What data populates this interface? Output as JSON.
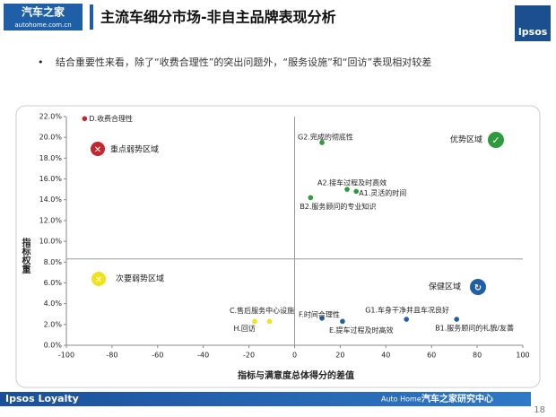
{
  "header": {
    "logo": "汽车之家",
    "logo_sub": "autohome.com.cn",
    "title": "主流车细分市场-非自主品牌表现分析",
    "brand": "Ipsos"
  },
  "bullet": "结合重要性来看，除了“收费合理性”的突出问题外，“服务设施”和“回访”表现相对较差",
  "chart_data": {
    "type": "scatter",
    "x_label": "指标与满意度总体得分的差值",
    "y_label": "指标权重",
    "xlim": [
      -100,
      100
    ],
    "xticks": [
      -100,
      -80,
      -60,
      -40,
      -20,
      0,
      20,
      40,
      60,
      80,
      100
    ],
    "ylim": [
      0,
      22
    ],
    "yticks": [
      {
        "value": 0,
        "label": "0.0%"
      },
      {
        "value": 2,
        "label": "2.0%"
      },
      {
        "value": 4,
        "label": "4.0%"
      },
      {
        "value": 6,
        "label": "6.0%"
      },
      {
        "value": 8,
        "label": "8.0%"
      },
      {
        "value": 10,
        "label": "10.0%"
      },
      {
        "value": 12,
        "label": "12.0%"
      },
      {
        "value": 14,
        "label": "14.0%"
      },
      {
        "value": 16,
        "label": "16.0%"
      },
      {
        "value": 18,
        "label": "18.0%"
      },
      {
        "value": 20,
        "label": "20.0%"
      },
      {
        "value": 22,
        "label": "22.0%"
      }
    ],
    "quadrant_lines": {
      "x": 0,
      "y": 8.3
    },
    "quadrants": [
      "重点弱势区域",
      "优势区域",
      "次要弱势区域",
      "保健区域"
    ],
    "points": [
      {
        "label": "D.收费合理性",
        "x": -92,
        "y": 21.8,
        "color": "#c0282d"
      },
      {
        "label": "G2.完成的彻底性",
        "x": 12,
        "y": 19.5,
        "color": "#2e9a3c"
      },
      {
        "label": "A2.接车过程及时高效",
        "x": 23,
        "y": 15.0,
        "color": "#2e9a3c"
      },
      {
        "label": "A1.灵活的时间",
        "x": 27,
        "y": 14.8,
        "color": "#2e9a3c"
      },
      {
        "label": "B2.服务顾问的专业知识",
        "x": 7,
        "y": 14.2,
        "color": "#2e9a3c"
      },
      {
        "label": "C.售后服务中心设施",
        "x": -17.5,
        "y": 2.3,
        "color": "#f2e21a"
      },
      {
        "label": "H.回访",
        "x": -11,
        "y": 2.3,
        "color": "#f2e21a"
      },
      {
        "label": "F.时间合理性",
        "x": 12,
        "y": 2.6,
        "color": "#1f5fa8"
      },
      {
        "label": "E.提车过程及时高效",
        "x": 21,
        "y": 2.3,
        "color": "#1f5fa8"
      },
      {
        "label": "G1.车身干净并且车况良好",
        "x": 49,
        "y": 2.5,
        "color": "#1f5fa8"
      },
      {
        "label": "B1.服务顾问的礼貌/友善",
        "x": 71,
        "y": 2.5,
        "color": "#1f5fa8"
      }
    ]
  },
  "footer": {
    "left": "Ipsos Loyalty",
    "mid": "Auto Home",
    "right": "汽车之家研究中心",
    "page": "18"
  }
}
